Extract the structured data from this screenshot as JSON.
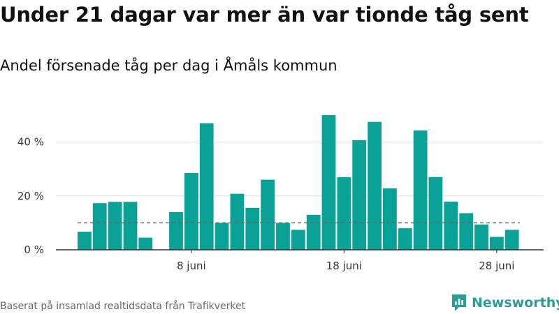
{
  "title": "Under 21 dagar var mer än var tionde tåg sent",
  "subtitle": "Andel försenade tåg per dag i Åmåls kommun",
  "source": "Baserat på insamlad realtidsdata från Trafikverket",
  "brand": {
    "name": "Newsworthy",
    "icon": "newsworthy-logo-icon",
    "color": "#2a9d95"
  },
  "colors": {
    "bar": "#0aa196",
    "reference_line": "#666666",
    "grid": "#dddddd",
    "axis": "#333333"
  },
  "chart_data": {
    "type": "bar",
    "title": "Under 21 dagar var mer än var tionde tåg sent",
    "subtitle": "Andel försenade tåg per dag i Åmåls kommun",
    "xlabel": "",
    "ylabel": "",
    "x": [
      1,
      2,
      3,
      4,
      5,
      6,
      7,
      8,
      9,
      10,
      11,
      12,
      13,
      14,
      15,
      16,
      17,
      18,
      19,
      20,
      21,
      22,
      23,
      24,
      25,
      26,
      27,
      28,
      29,
      30
    ],
    "values": [
      6.7,
      17.3,
      17.8,
      17.8,
      4.5,
      null,
      14.0,
      28.5,
      47.0,
      10.0,
      20.8,
      15.6,
      26.0,
      10.0,
      7.4,
      13.0,
      50.0,
      27.0,
      40.7,
      47.5,
      22.8,
      8.0,
      44.3,
      27.0,
      17.9,
      13.6,
      9.4,
      4.8,
      7.4,
      null
    ],
    "reference_line": 10,
    "ylim": [
      0,
      50
    ],
    "yticks": [
      {
        "value": 0,
        "label": "0 %"
      },
      {
        "value": 20,
        "label": "20 %"
      },
      {
        "value": 40,
        "label": "40 %"
      }
    ],
    "xticks": [
      {
        "value": 8,
        "label": "8 juni"
      },
      {
        "value": 18,
        "label": "18 juni"
      },
      {
        "value": 28,
        "label": "28 juni"
      }
    ],
    "grid": true,
    "legend": "none"
  }
}
